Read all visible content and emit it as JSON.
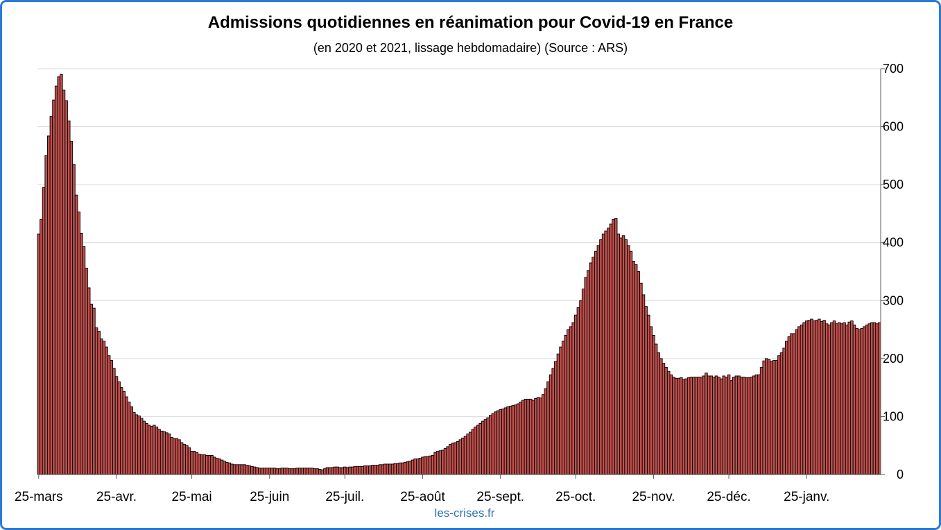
{
  "chart_data": {
    "type": "bar",
    "title": "Admissions quotidiennes en réanimation pour Covid-19 en France",
    "subtitle": "(en 2020 et 2021, lissage hebdomadaire) (Source : ARS)",
    "ylim": [
      0,
      700
    ],
    "yticks": [
      0,
      100,
      200,
      300,
      400,
      500,
      600,
      700
    ],
    "y_axis_side": "right",
    "grid": true,
    "legend": false,
    "periods": [
      {
        "start": "25-mars",
        "values": [
          415,
          440,
          495,
          550,
          584,
          618,
          646,
          670,
          686,
          690,
          663,
          645,
          610,
          575,
          535,
          482,
          453,
          416,
          393,
          356,
          322,
          294,
          287,
          253,
          247,
          234,
          230,
          220,
          205,
          197,
          183
        ]
      },
      {
        "start": "25-avr.",
        "values": [
          169,
          160,
          150,
          143,
          134,
          125,
          117,
          107,
          103,
          101,
          97,
          92,
          88,
          85,
          83,
          85,
          82,
          78,
          75,
          74,
          72,
          70,
          64,
          62,
          62,
          60,
          55,
          52,
          50,
          46
        ]
      },
      {
        "start": "25-mai",
        "values": [
          40,
          40,
          38,
          35,
          34,
          34,
          33,
          33,
          33,
          30,
          28,
          27,
          25,
          23,
          21,
          20,
          18,
          17,
          17,
          17,
          17,
          17,
          16,
          15,
          14,
          13,
          12,
          11,
          11,
          11,
          11
        ]
      },
      {
        "start": "25-juin",
        "values": [
          11,
          11,
          11,
          10,
          10,
          11,
          11,
          11,
          10,
          10,
          10,
          11,
          11,
          11,
          11,
          11,
          11,
          11,
          10,
          10,
          9,
          8,
          10,
          12,
          12,
          12,
          13,
          13,
          12,
          12
        ]
      },
      {
        "start": "25-juil.",
        "values": [
          13,
          12,
          13,
          13,
          14,
          14,
          14,
          14,
          15,
          15,
          15,
          16,
          16,
          16,
          17,
          17,
          18,
          18,
          18,
          18,
          19,
          19,
          20,
          20,
          21,
          22,
          23,
          25,
          27,
          27,
          28
        ]
      },
      {
        "start": "25-août",
        "values": [
          30,
          31,
          31,
          32,
          33,
          38,
          40,
          41,
          42,
          45,
          48,
          52,
          54,
          55,
          57,
          60,
          63,
          66,
          70,
          73,
          78,
          82,
          85,
          88,
          92,
          95,
          98,
          102,
          105,
          108,
          110
        ]
      },
      {
        "start": "25-sept.",
        "values": [
          112,
          113,
          115,
          117,
          118,
          119,
          120,
          122,
          125,
          128,
          130,
          130,
          130,
          128,
          131,
          133,
          132,
          138,
          148,
          160,
          172,
          183,
          195,
          208,
          220,
          230,
          240,
          250,
          255,
          262
        ]
      },
      {
        "start": "25-oct.",
        "values": [
          275,
          288,
          300,
          320,
          340,
          352,
          365,
          375,
          385,
          395,
          405,
          415,
          420,
          425,
          432,
          440,
          442,
          415,
          408,
          412,
          405,
          395,
          385,
          368,
          362,
          350,
          330,
          310,
          290,
          275,
          255
        ]
      },
      {
        "start": "25-nov.",
        "values": [
          240,
          225,
          210,
          200,
          192,
          185,
          178,
          172,
          168,
          166,
          166,
          167,
          164,
          165,
          167,
          168,
          168,
          168,
          168,
          168,
          170,
          175,
          170,
          170,
          168,
          170,
          168,
          165,
          170,
          168
        ]
      },
      {
        "start": "25-déc.",
        "values": [
          172,
          162,
          168,
          170,
          170,
          168,
          168,
          167,
          167,
          168,
          170,
          172,
          172,
          185,
          196,
          200,
          198,
          195,
          197,
          197,
          205,
          210,
          218,
          230,
          238,
          243,
          243,
          250,
          255,
          258,
          262
        ]
      },
      {
        "start": "25-janv.",
        "values": [
          265,
          266,
          268,
          265,
          266,
          268,
          264,
          266,
          260,
          258,
          262,
          265,
          260,
          262,
          260,
          262,
          258,
          263,
          265,
          258,
          252,
          250,
          252,
          255,
          258,
          260,
          262,
          262,
          260,
          262
        ]
      }
    ],
    "colors": {
      "bar_fill": "#c0504d",
      "bar_stroke": "#000000",
      "grid": "#d9d9d9",
      "axis": "#595959"
    }
  },
  "credit": "les-crises.fr",
  "colors": {
    "border": "#2a7bd5",
    "credit": "#2e75b6"
  }
}
